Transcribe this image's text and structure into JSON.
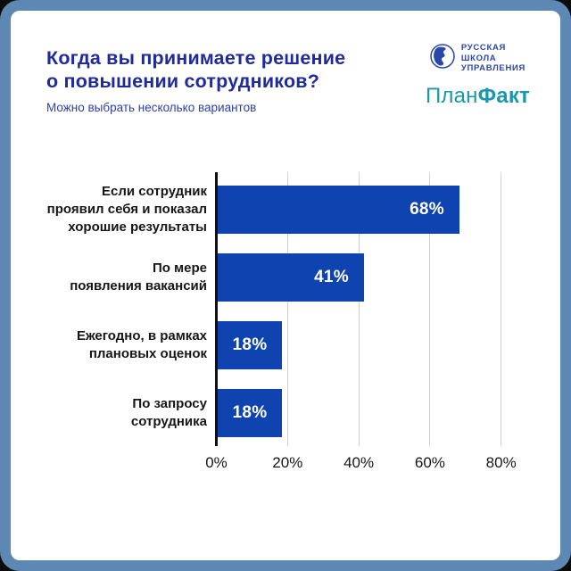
{
  "header": {
    "title_line1": "Когда вы принимаете решение",
    "title_line2": "о повышении сотрудников?",
    "subtitle": "Можно выбрать несколько вариантов"
  },
  "logos": {
    "rsu": {
      "lines": [
        "РУССКАЯ",
        "ШКОЛА",
        "УПРАВЛЕНИЯ"
      ]
    },
    "planfact": {
      "regular": "План",
      "bold": "Факт"
    }
  },
  "colors": {
    "frame": "#5d88b4",
    "card": "#ffffff",
    "title": "#1e2a9e",
    "subtitle": "#2b3ead",
    "bar": "#0f44b0",
    "value_label": "#ffffff",
    "axis": "#111111",
    "gridline": "#d2d2d2",
    "rsu_blue": "#2b47a8",
    "planfact_teal": "#1898ad"
  },
  "chart_data": {
    "type": "bar",
    "orientation": "horizontal",
    "title": "Когда вы принимаете решение о повышении сотрудников?",
    "subtitle": "Можно выбрать несколько вариантов",
    "categories": [
      "Если сотрудник\nпроявил себя и показал\nхорошие результаты",
      "По мере\nпоявления вакансий",
      "Ежегодно, в рамках\nплановых оценок",
      "По запросу\nсотрудника"
    ],
    "values": [
      68,
      41,
      18,
      18
    ],
    "value_labels": [
      "68%",
      "41%",
      "18%",
      "18%"
    ],
    "x_ticks": [
      {
        "value": 0,
        "label": "0%"
      },
      {
        "value": 20,
        "label": "20%"
      },
      {
        "value": 40,
        "label": "40%"
      },
      {
        "value": 60,
        "label": "60%"
      },
      {
        "value": 80,
        "label": "80%"
      }
    ],
    "xlim": [
      0,
      95
    ],
    "grid": true,
    "legend": false,
    "bar_color": "#0f44b0"
  }
}
